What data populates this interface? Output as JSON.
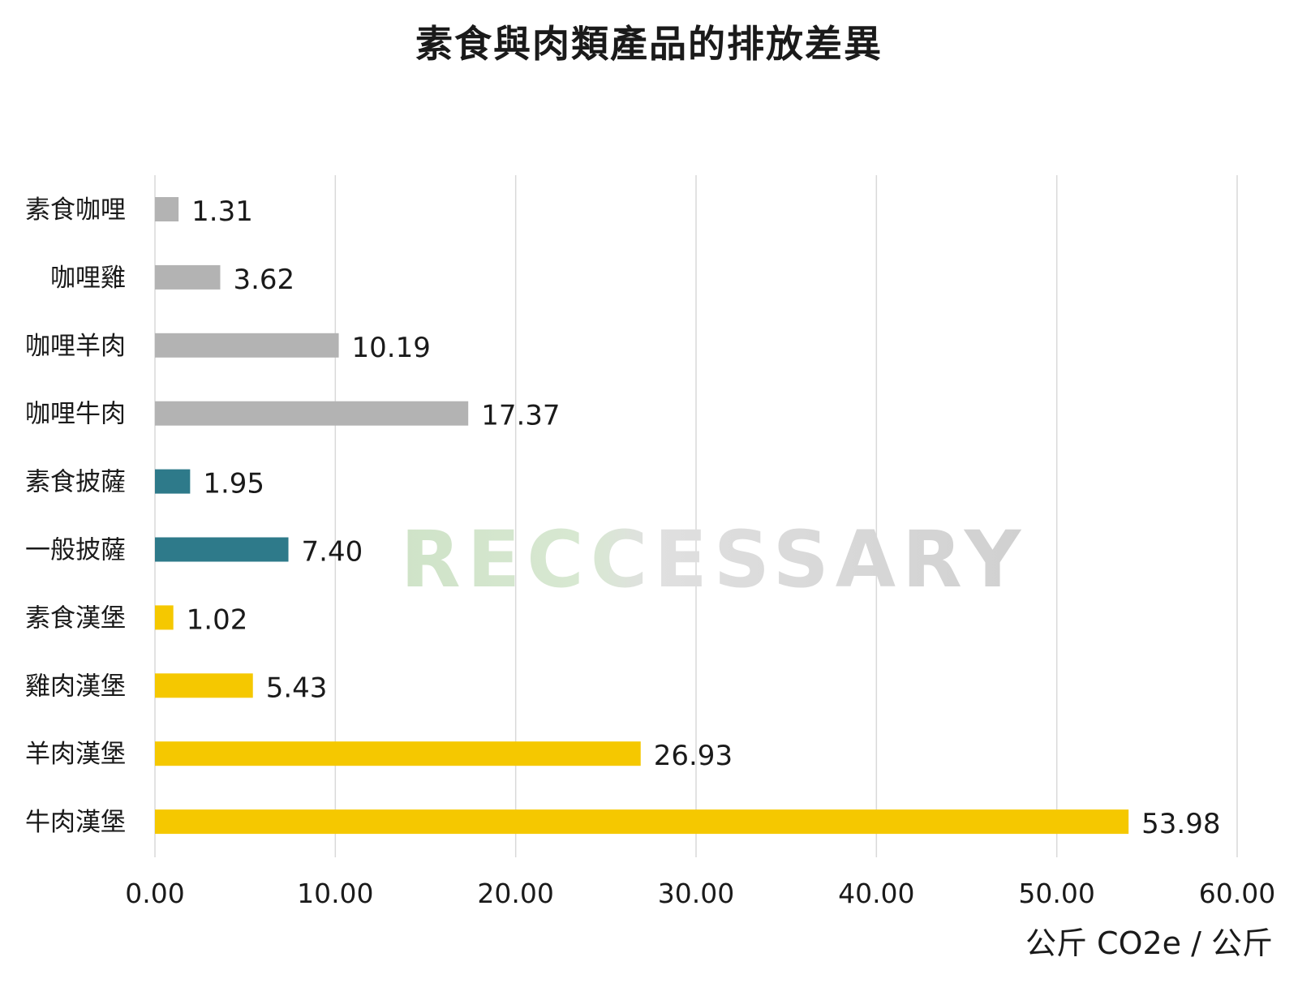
{
  "chart_data": {
    "type": "bar",
    "orientation": "horizontal",
    "title": "素食與肉類產品的排放差異",
    "xlabel": "",
    "ylabel": "",
    "unit": "公斤 CO2e / 公斤",
    "xlim": [
      0,
      60
    ],
    "xticks": [
      "0.00",
      "10.00",
      "20.00",
      "30.00",
      "40.00",
      "50.00",
      "60.00"
    ],
    "grid": "vertical",
    "categories": [
      "素食咖哩",
      "咖哩雞",
      "咖哩羊肉",
      "咖哩牛肉",
      "素食披薩",
      "一般披薩",
      "素食漢堡",
      "雞肉漢堡",
      "羊肉漢堡",
      "牛肉漢堡"
    ],
    "values": [
      1.31,
      3.62,
      10.19,
      17.37,
      1.95,
      7.4,
      1.02,
      5.43,
      26.93,
      53.98
    ],
    "value_labels": [
      "1.31",
      "3.62",
      "10.19",
      "17.37",
      "1.95",
      "7.40",
      "1.02",
      "5.43",
      "26.93",
      "53.98"
    ],
    "colors": [
      "#b3b3b3",
      "#b3b3b3",
      "#b3b3b3",
      "#b3b3b3",
      "#2e7a8a",
      "#2e7a8a",
      "#f5c800",
      "#f5c800",
      "#f5c800",
      "#f5c800"
    ]
  },
  "watermark": "RECCESSARY"
}
